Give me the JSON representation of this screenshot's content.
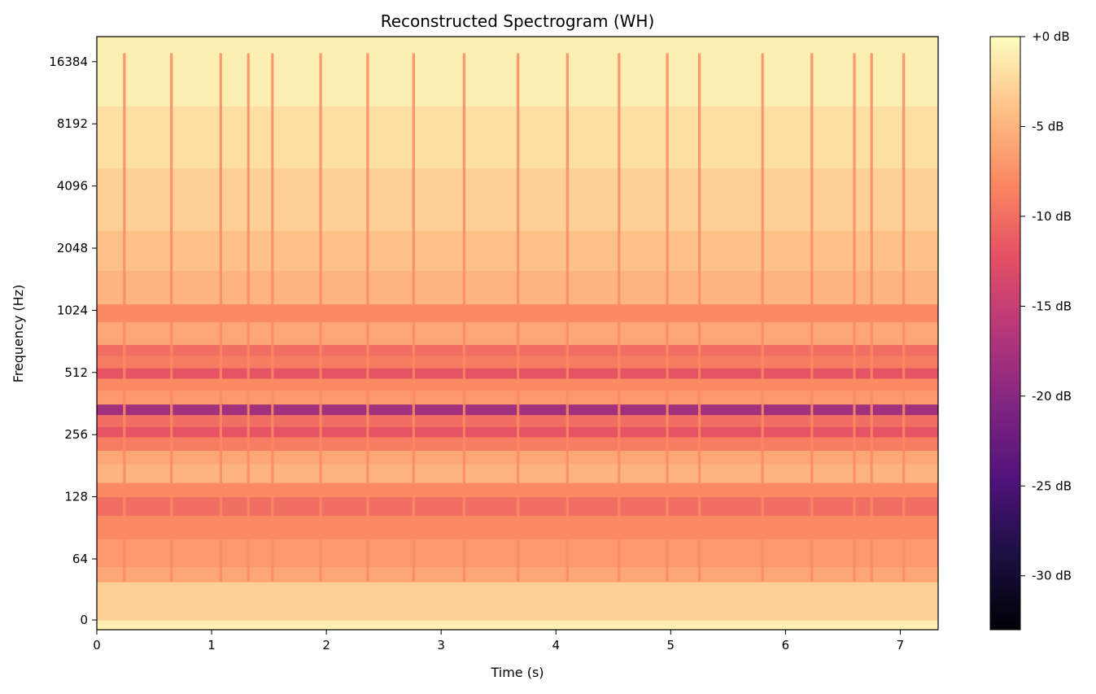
{
  "chart_data": {
    "type": "heatmap",
    "title": "Reconstructed Spectrogram (WH)",
    "xlabel": "Time (s)",
    "ylabel": "Frequency (Hz)",
    "xlim": [
      0,
      7.33
    ],
    "x_ticks": [
      0,
      1,
      2,
      3,
      4,
      5,
      6,
      7
    ],
    "x_tick_labels": [
      "0",
      "1",
      "2",
      "3",
      "4",
      "5",
      "6",
      "7"
    ],
    "y_scale": "log2",
    "y_ticks": [
      0,
      64,
      128,
      256,
      512,
      1024,
      2048,
      4096,
      8192,
      16384
    ],
    "y_tick_labels": [
      "0",
      "64",
      "128",
      "256",
      "512",
      "1024",
      "2048",
      "4096",
      "8192",
      "16384"
    ],
    "colormap": "magma",
    "colorbar": {
      "range_db": [
        -33,
        0
      ],
      "ticks": [
        0,
        -5,
        -10,
        -15,
        -20,
        -25,
        -30
      ],
      "tick_labels": [
        "+0 dB",
        "-5 dB",
        "-10 dB",
        "-15 dB",
        "-20 dB",
        "-25 dB",
        "-30 dB"
      ]
    },
    "onset_times_s": [
      0.24,
      0.65,
      1.08,
      1.32,
      1.53,
      1.95,
      2.36,
      2.76,
      3.2,
      3.67,
      4.1,
      4.55,
      4.97,
      5.25,
      5.8,
      6.23,
      6.6,
      6.75,
      7.03
    ],
    "frequency_bands": [
      {
        "low_hz": 0,
        "high_hz": 40,
        "level_db": -3
      },
      {
        "low_hz": 40,
        "high_hz": 56,
        "level_db": -6
      },
      {
        "low_hz": 56,
        "high_hz": 80,
        "level_db": -7
      },
      {
        "low_hz": 80,
        "high_hz": 104,
        "level_db": -8
      },
      {
        "low_hz": 104,
        "high_hz": 128,
        "level_db": -10
      },
      {
        "low_hz": 128,
        "high_hz": 150,
        "level_db": -8
      },
      {
        "low_hz": 150,
        "high_hz": 185,
        "level_db": -5
      },
      {
        "low_hz": 185,
        "high_hz": 215,
        "level_db": -6
      },
      {
        "low_hz": 215,
        "high_hz": 250,
        "level_db": -9
      },
      {
        "low_hz": 250,
        "high_hz": 280,
        "level_db": -12
      },
      {
        "low_hz": 280,
        "high_hz": 320,
        "level_db": -10
      },
      {
        "low_hz": 320,
        "high_hz": 360,
        "level_db": -18
      },
      {
        "low_hz": 360,
        "high_hz": 420,
        "level_db": -7
      },
      {
        "low_hz": 420,
        "high_hz": 480,
        "level_db": -8
      },
      {
        "low_hz": 480,
        "high_hz": 540,
        "level_db": -12
      },
      {
        "low_hz": 540,
        "high_hz": 620,
        "level_db": -9
      },
      {
        "low_hz": 620,
        "high_hz": 700,
        "level_db": -10
      },
      {
        "low_hz": 700,
        "high_hz": 900,
        "level_db": -6
      },
      {
        "low_hz": 900,
        "high_hz": 1100,
        "level_db": -8
      },
      {
        "low_hz": 1100,
        "high_hz": 1600,
        "level_db": -5
      },
      {
        "low_hz": 1600,
        "high_hz": 2500,
        "level_db": -4
      },
      {
        "low_hz": 2500,
        "high_hz": 5000,
        "level_db": -3
      },
      {
        "low_hz": 5000,
        "high_hz": 10000,
        "level_db": -2
      },
      {
        "low_hz": 10000,
        "high_hz": 22050,
        "level_db": -1
      }
    ]
  }
}
